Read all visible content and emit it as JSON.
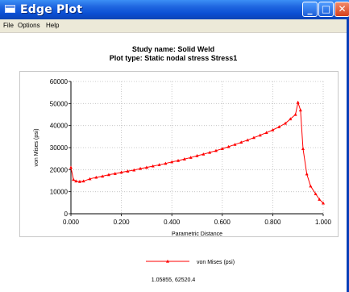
{
  "window": {
    "title": "Edge Plot",
    "minimize_label": "_",
    "maximize_label": "□",
    "close_label": "✕"
  },
  "menu": [
    "File",
    "Options",
    "Help"
  ],
  "header": {
    "study_name": "Study name: Solid Weld",
    "plot_type": "Plot type: Static nodal stress Stress1"
  },
  "chart_data": {
    "type": "line",
    "xlabel": "Parametric Distance",
    "ylabel": "von Mises (psi)",
    "xlim": [
      0,
      1
    ],
    "ylim": [
      0,
      60000
    ],
    "xticks": [
      "0.000",
      "0.200",
      "0.400",
      "0.600",
      "0.800",
      "1.000"
    ],
    "yticks": [
      "0",
      "10000",
      "20000",
      "30000",
      "40000",
      "50000",
      "60000"
    ],
    "grid": true,
    "legend_position": "bottom",
    "series": [
      {
        "name": "von Mises (psi)",
        "color": "#ff0000",
        "x": [
          0.0,
          0.01,
          0.02,
          0.035,
          0.05,
          0.075,
          0.1,
          0.125,
          0.15,
          0.175,
          0.2,
          0.225,
          0.25,
          0.275,
          0.3,
          0.325,
          0.35,
          0.375,
          0.4,
          0.425,
          0.45,
          0.475,
          0.5,
          0.525,
          0.55,
          0.575,
          0.6,
          0.625,
          0.65,
          0.675,
          0.7,
          0.725,
          0.75,
          0.775,
          0.8,
          0.825,
          0.85,
          0.87,
          0.89,
          0.9,
          0.91,
          0.92,
          0.935,
          0.95,
          0.97,
          0.985,
          1.0
        ],
        "y": [
          21000,
          15500,
          14800,
          14600,
          14800,
          15800,
          16500,
          17000,
          17700,
          18200,
          18800,
          19300,
          19800,
          20500,
          21000,
          21600,
          22200,
          22800,
          23500,
          24100,
          24800,
          25500,
          26300,
          27000,
          27800,
          28600,
          29500,
          30400,
          31400,
          32400,
          33400,
          34500,
          35600,
          36800,
          38000,
          39400,
          41000,
          43000,
          45000,
          50500,
          47000,
          29500,
          18000,
          12500,
          9000,
          6500,
          4800
        ]
      }
    ]
  },
  "coord_readout": "1.05855, 62520.4"
}
